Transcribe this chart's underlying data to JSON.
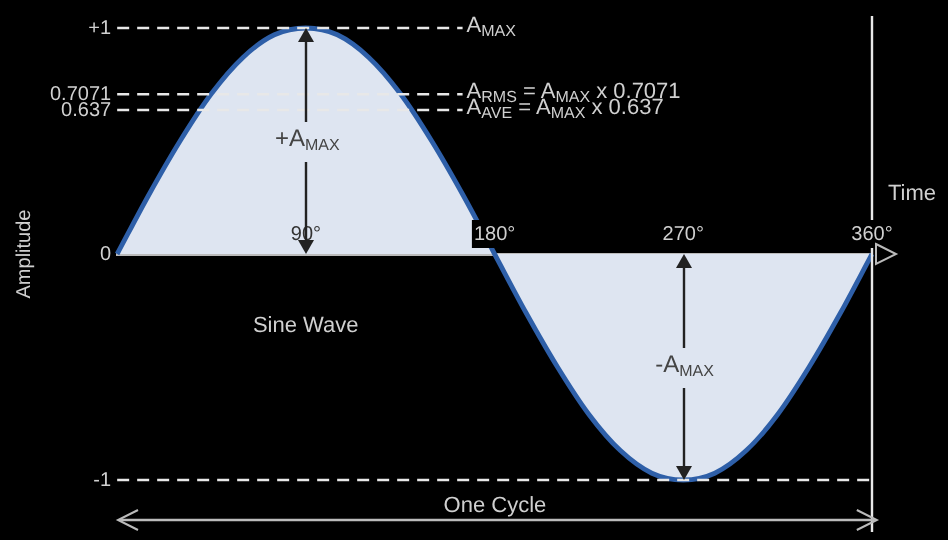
{
  "chart_data": {
    "type": "area",
    "title": "Sine Wave",
    "xlabel": "Time",
    "ylabel": "Amplitude",
    "x": [
      0,
      15,
      30,
      45,
      60,
      75,
      90,
      105,
      120,
      135,
      150,
      165,
      180,
      195,
      210,
      225,
      240,
      255,
      270,
      285,
      300,
      315,
      330,
      345,
      360
    ],
    "series": [
      {
        "color": "#2e5fa8",
        "values": [
          0,
          0.26,
          0.5,
          0.71,
          0.87,
          0.97,
          1,
          0.97,
          0.87,
          0.71,
          0.5,
          0.26,
          0,
          -0.26,
          -0.5,
          -0.71,
          -0.87,
          -0.97,
          -1,
          -0.97,
          -0.87,
          -0.71,
          -0.5,
          -0.26,
          0
        ]
      }
    ],
    "xlim": [
      0,
      360
    ],
    "xticks": [
      {
        "value": 90,
        "label": "90°"
      },
      {
        "value": 180,
        "label": "180°"
      },
      {
        "value": 270,
        "label": "270°"
      },
      {
        "value": 360,
        "label": "360°"
      }
    ],
    "ylim": [
      -1,
      1
    ],
    "yticks": [
      {
        "value": 1,
        "label": "+1"
      },
      0.7071,
      0.637,
      0,
      -1
    ],
    "ref_lines": [
      {
        "axis": "y",
        "value": 1,
        "label": "A$_{MAX}$",
        "line_style": "dashed"
      },
      {
        "axis": "y",
        "value": 0.7071,
        "label": "A$_{RMS}$ = A$_{MAX}$ x 0.7071",
        "line_style": "dashed"
      },
      {
        "axis": "y",
        "value": 0.637,
        "label": "A$_{AVE}$ = A$_{MAX}$ x 0.637",
        "line_style": "dashed"
      },
      {
        "axis": "y",
        "value": -1,
        "line_style": "dashed"
      },
      {
        "axis": "x",
        "value": 360,
        "line_style": "solid"
      }
    ],
    "annotations": [
      "+A$_{MAX}$",
      "-A$_{MAX}$",
      "One Cycle"
    ],
    "grid": false,
    "legend": false,
    "marker": "none",
    "line_style": "solid"
  }
}
